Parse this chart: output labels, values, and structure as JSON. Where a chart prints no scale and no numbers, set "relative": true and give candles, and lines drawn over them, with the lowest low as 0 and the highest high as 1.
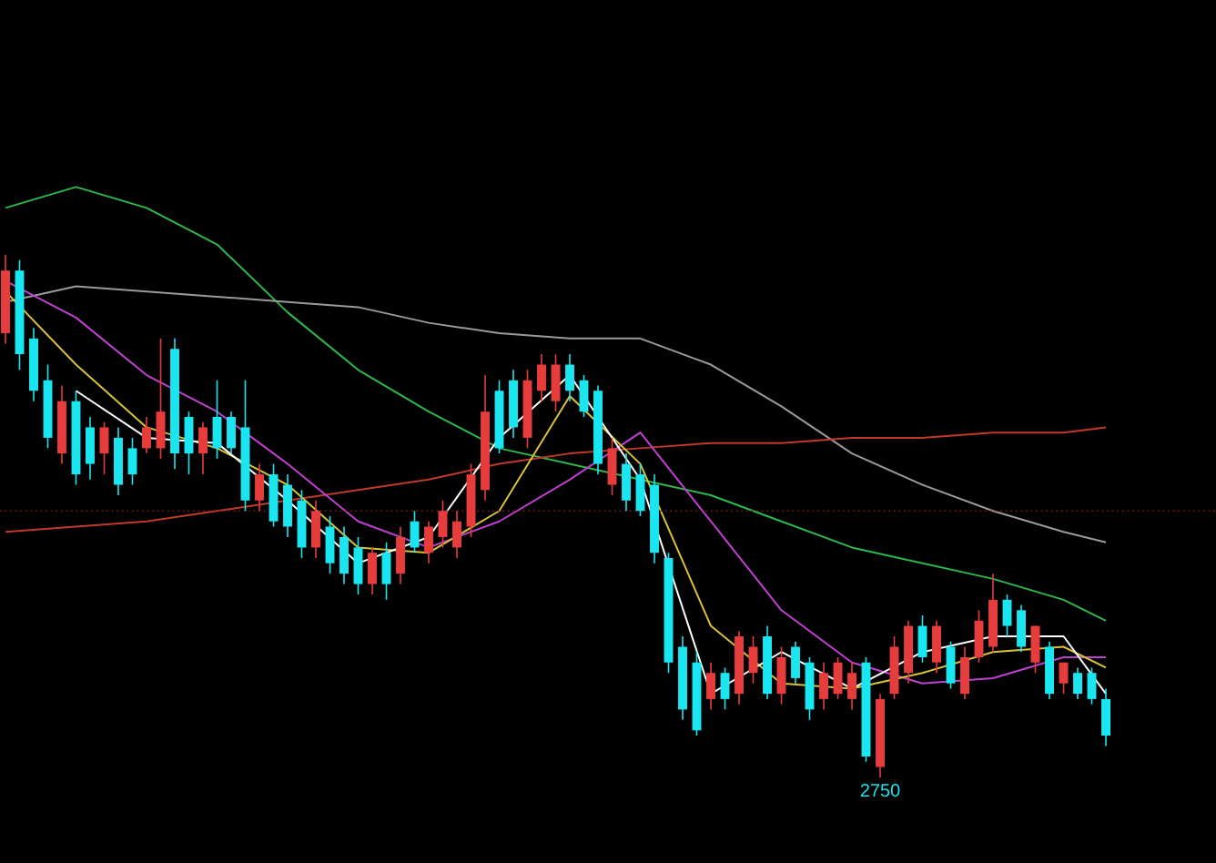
{
  "chart_data": {
    "type": "candlestick",
    "relative": true,
    "categories": [
      null,
      null,
      null,
      null,
      null,
      null,
      null,
      null,
      null,
      null,
      null,
      null,
      null,
      null,
      null,
      null,
      null,
      null,
      null,
      null,
      null,
      null,
      null,
      null,
      null,
      null,
      null,
      null,
      null,
      null,
      null,
      null,
      null,
      null,
      null,
      null,
      null,
      null,
      null,
      null,
      null,
      null,
      null,
      null,
      null,
      null,
      null,
      null,
      null,
      null,
      null,
      null,
      null,
      null,
      null,
      null,
      null,
      null,
      null,
      null,
      null,
      null,
      null,
      null,
      null,
      null,
      null,
      null,
      null,
      null,
      null,
      null,
      null,
      null,
      null,
      null,
      null,
      null,
      null
    ],
    "ohlc": [
      [
        0.85,
        1.0,
        0.83,
        0.97
      ],
      [
        0.97,
        0.99,
        0.78,
        0.81
      ],
      [
        0.84,
        0.86,
        0.72,
        0.74
      ],
      [
        0.76,
        0.79,
        0.63,
        0.65
      ],
      [
        0.62,
        0.75,
        0.6,
        0.72
      ],
      [
        0.72,
        0.74,
        0.56,
        0.58
      ],
      [
        0.67,
        0.69,
        0.57,
        0.6
      ],
      [
        0.62,
        0.68,
        0.58,
        0.67
      ],
      [
        0.65,
        0.67,
        0.54,
        0.56
      ],
      [
        0.63,
        0.65,
        0.56,
        0.58
      ],
      [
        0.63,
        0.69,
        0.62,
        0.67
      ],
      [
        0.63,
        0.84,
        0.61,
        0.7
      ],
      [
        0.82,
        0.84,
        0.59,
        0.62
      ],
      [
        0.69,
        0.7,
        0.58,
        0.62
      ],
      [
        0.62,
        0.68,
        0.58,
        0.67
      ],
      [
        0.69,
        0.76,
        0.61,
        0.63
      ],
      [
        0.69,
        0.7,
        0.62,
        0.63
      ],
      [
        0.67,
        0.76,
        0.51,
        0.53
      ],
      [
        0.53,
        0.6,
        0.51,
        0.58
      ],
      [
        0.58,
        0.6,
        0.48,
        0.49
      ],
      [
        0.56,
        0.58,
        0.46,
        0.48
      ],
      [
        0.53,
        0.55,
        0.42,
        0.44
      ],
      [
        0.44,
        0.53,
        0.42,
        0.51
      ],
      [
        0.48,
        0.5,
        0.39,
        0.41
      ],
      [
        0.46,
        0.48,
        0.37,
        0.39
      ],
      [
        0.44,
        0.46,
        0.35,
        0.37
      ],
      [
        0.37,
        0.44,
        0.35,
        0.43
      ],
      [
        0.43,
        0.45,
        0.34,
        0.37
      ],
      [
        0.39,
        0.48,
        0.37,
        0.46
      ],
      [
        0.49,
        0.51,
        0.43,
        0.44
      ],
      [
        0.43,
        0.49,
        0.41,
        0.48
      ],
      [
        0.46,
        0.53,
        0.44,
        0.51
      ],
      [
        0.44,
        0.51,
        0.42,
        0.49
      ],
      [
        0.48,
        0.6,
        0.46,
        0.58
      ],
      [
        0.55,
        0.77,
        0.53,
        0.7
      ],
      [
        0.74,
        0.76,
        0.62,
        0.63
      ],
      [
        0.76,
        0.78,
        0.65,
        0.67
      ],
      [
        0.65,
        0.78,
        0.63,
        0.76
      ],
      [
        0.74,
        0.81,
        0.72,
        0.79
      ],
      [
        0.72,
        0.81,
        0.7,
        0.79
      ],
      [
        0.79,
        0.81,
        0.72,
        0.74
      ],
      [
        0.76,
        0.77,
        0.69,
        0.7
      ],
      [
        0.74,
        0.75,
        0.58,
        0.6
      ],
      [
        0.56,
        0.65,
        0.54,
        0.63
      ],
      [
        0.6,
        0.62,
        0.51,
        0.53
      ],
      [
        0.58,
        0.6,
        0.5,
        0.51
      ],
      [
        0.56,
        0.58,
        0.41,
        0.43
      ],
      [
        0.42,
        0.43,
        0.2,
        0.22
      ],
      [
        0.25,
        0.27,
        0.11,
        0.13
      ],
      [
        0.22,
        0.24,
        0.08,
        0.09
      ],
      [
        0.15,
        0.22,
        0.13,
        0.2
      ],
      [
        0.2,
        0.21,
        0.13,
        0.15
      ],
      [
        0.16,
        0.28,
        0.14,
        0.27
      ],
      [
        0.2,
        0.27,
        0.18,
        0.25
      ],
      [
        0.27,
        0.29,
        0.15,
        0.16
      ],
      [
        0.16,
        0.25,
        0.14,
        0.23
      ],
      [
        0.25,
        0.26,
        0.18,
        0.19
      ],
      [
        0.22,
        0.23,
        0.11,
        0.13
      ],
      [
        0.15,
        0.22,
        0.13,
        0.2
      ],
      [
        0.16,
        0.23,
        0.15,
        0.22
      ],
      [
        0.15,
        0.22,
        0.13,
        0.2
      ],
      [
        0.22,
        0.23,
        0.03,
        0.04
      ],
      [
        0.02,
        0.16,
        0.0,
        0.15
      ],
      [
        0.16,
        0.27,
        0.15,
        0.25
      ],
      [
        0.2,
        0.3,
        0.18,
        0.29
      ],
      [
        0.29,
        0.31,
        0.22,
        0.23
      ],
      [
        0.22,
        0.3,
        0.2,
        0.29
      ],
      [
        0.25,
        0.26,
        0.17,
        0.18
      ],
      [
        0.16,
        0.25,
        0.15,
        0.23
      ],
      [
        0.23,
        0.32,
        0.22,
        0.3
      ],
      [
        0.25,
        0.39,
        0.24,
        0.34
      ],
      [
        0.34,
        0.35,
        0.27,
        0.29
      ],
      [
        0.32,
        0.33,
        0.24,
        0.25
      ],
      [
        0.22,
        0.29,
        0.2,
        0.29
      ],
      [
        0.25,
        0.26,
        0.15,
        0.16
      ],
      [
        0.18,
        0.22,
        0.16,
        0.22
      ],
      [
        0.2,
        0.21,
        0.15,
        0.16
      ],
      [
        0.2,
        0.21,
        0.14,
        0.15
      ],
      [
        0.15,
        0.17,
        0.06,
        0.08
      ]
    ],
    "series": [
      {
        "type": "line",
        "color": "#2db84d",
        "values": [
          1.09,
          null,
          null,
          null,
          null,
          1.13,
          null,
          null,
          null,
          null,
          1.09,
          null,
          null,
          null,
          null,
          1.02,
          null,
          null,
          null,
          null,
          0.89,
          null,
          null,
          null,
          null,
          0.78,
          null,
          null,
          null,
          null,
          0.7,
          null,
          null,
          null,
          null,
          0.63,
          null,
          null,
          null,
          null,
          0.6,
          null,
          null,
          null,
          null,
          0.57,
          null,
          null,
          null,
          null,
          0.54,
          null,
          null,
          null,
          null,
          0.49,
          null,
          null,
          null,
          null,
          0.44,
          null,
          null,
          null,
          null,
          0.41,
          null,
          null,
          null,
          null,
          0.38,
          null,
          null,
          null,
          null,
          0.34,
          null,
          null,
          0.3
        ]
      },
      {
        "type": "line",
        "color": "#9a9a9a",
        "values": [
          0.91,
          null,
          null,
          null,
          null,
          0.94,
          null,
          null,
          null,
          null,
          0.93,
          null,
          null,
          null,
          null,
          0.92,
          null,
          null,
          null,
          null,
          0.91,
          null,
          null,
          null,
          null,
          0.9,
          null,
          null,
          null,
          null,
          0.87,
          null,
          null,
          null,
          null,
          0.85,
          null,
          null,
          null,
          null,
          0.84,
          null,
          null,
          null,
          null,
          0.84,
          null,
          null,
          null,
          null,
          0.79,
          null,
          null,
          null,
          null,
          0.71,
          null,
          null,
          null,
          null,
          0.62,
          null,
          null,
          null,
          null,
          0.56,
          null,
          null,
          null,
          null,
          0.51,
          null,
          null,
          null,
          null,
          0.47,
          null,
          null,
          0.45
        ]
      },
      {
        "type": "line",
        "color": "#c0392b",
        "values": [
          0.47,
          null,
          null,
          null,
          null,
          0.48,
          null,
          null,
          null,
          null,
          0.49,
          null,
          null,
          null,
          null,
          0.51,
          null,
          null,
          null,
          null,
          0.53,
          null,
          null,
          null,
          null,
          0.55,
          null,
          null,
          null,
          null,
          0.57,
          null,
          null,
          null,
          null,
          0.6,
          null,
          null,
          null,
          null,
          0.62,
          null,
          null,
          null,
          null,
          0.63,
          null,
          null,
          null,
          null,
          0.64,
          null,
          null,
          null,
          null,
          0.64,
          null,
          null,
          null,
          null,
          0.65,
          null,
          null,
          null,
          null,
          0.65,
          null,
          null,
          null,
          null,
          0.66,
          null,
          null,
          null,
          null,
          0.66,
          null,
          null,
          0.67
        ]
      },
      {
        "type": "line",
        "color": "#c040d0",
        "values": [
          0.95,
          null,
          null,
          null,
          null,
          0.88,
          null,
          null,
          null,
          null,
          0.77,
          null,
          null,
          null,
          null,
          0.7,
          null,
          null,
          null,
          null,
          0.6,
          null,
          null,
          null,
          null,
          0.49,
          null,
          null,
          null,
          null,
          0.44,
          null,
          null,
          null,
          null,
          0.49,
          null,
          null,
          null,
          null,
          0.57,
          null,
          null,
          null,
          null,
          0.66,
          null,
          null,
          null,
          null,
          0.49,
          null,
          null,
          null,
          null,
          0.32,
          null,
          null,
          null,
          null,
          0.22,
          null,
          null,
          null,
          null,
          0.18,
          null,
          null,
          null,
          null,
          0.19,
          null,
          null,
          null,
          null,
          0.23,
          null,
          null,
          0.23
        ]
      },
      {
        "type": "line",
        "color": "#d9c23a",
        "values": [
          0.93,
          null,
          null,
          null,
          null,
          0.79,
          null,
          null,
          null,
          null,
          0.67,
          null,
          null,
          null,
          null,
          0.63,
          null,
          null,
          null,
          null,
          0.56,
          null,
          null,
          null,
          null,
          0.44,
          null,
          null,
          null,
          null,
          0.43,
          null,
          null,
          null,
          null,
          0.51,
          null,
          null,
          null,
          null,
          0.73,
          null,
          null,
          null,
          null,
          0.6,
          null,
          null,
          null,
          null,
          0.29,
          null,
          null,
          null,
          null,
          0.18,
          null,
          null,
          null,
          null,
          0.17,
          null,
          null,
          null,
          null,
          0.2,
          null,
          null,
          null,
          null,
          0.24,
          null,
          null,
          null,
          null,
          0.25,
          null,
          null,
          0.21
        ]
      },
      {
        "type": "line",
        "color": "#ffffff",
        "values": [
          null,
          null,
          null,
          null,
          null,
          0.74,
          null,
          null,
          null,
          null,
          0.65,
          null,
          null,
          null,
          null,
          0.64,
          null,
          null,
          null,
          null,
          0.53,
          null,
          null,
          null,
          null,
          0.41,
          null,
          null,
          null,
          null,
          0.46,
          null,
          null,
          null,
          null,
          0.65,
          null,
          null,
          null,
          null,
          0.77,
          null,
          null,
          null,
          null,
          0.57,
          null,
          null,
          null,
          null,
          0.16,
          null,
          null,
          null,
          null,
          0.24,
          null,
          null,
          null,
          null,
          0.17,
          null,
          null,
          null,
          null,
          0.24,
          null,
          null,
          null,
          null,
          0.27,
          null,
          null,
          null,
          null,
          0.27,
          null,
          null,
          0.16
        ]
      }
    ],
    "ref_lines": [
      {
        "axis": "y",
        "value": 0.51,
        "color": "#8b1a1a",
        "line_style": "dotted"
      }
    ],
    "annotations": [
      {
        "text": "2750",
        "y": 0
      }
    ]
  }
}
